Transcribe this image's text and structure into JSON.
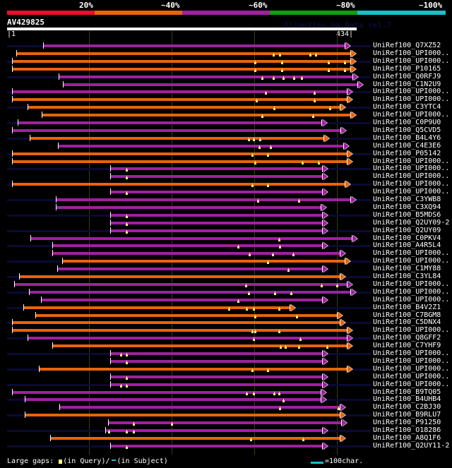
{
  "header": {
    "identity_bands": [
      {
        "label": "20%",
        "color": "#e8102a"
      },
      {
        "label": "~40%",
        "color": "#e8640a"
      },
      {
        "label": "~60%",
        "color": "#a020a0"
      },
      {
        "label": "~80%",
        "color": "#10a010"
      },
      {
        "label": "~100%",
        "color": "#18c0c8"
      }
    ],
    "query_name": "AV429825",
    "watermark": "AlignView.pm Beta rel.7",
    "range_start": "|1",
    "range_end": "434|",
    "query_length": 434
  },
  "colors": {
    "tail": "#0a0a33",
    "gap_marker": "#ffff80",
    "orange": "#e8640a",
    "purple": "#a020a0"
  },
  "rows": [
    {
      "label": "UniRef100_Q7XZ52",
      "tail_start": 1,
      "start": 46,
      "end": 420,
      "color": "purple",
      "gaps": []
    },
    {
      "label": "UniRef100_UPI000..",
      "tail_start": null,
      "start": 12,
      "end": 427,
      "color": "orange",
      "gaps": [
        330,
        338,
        375,
        382
      ]
    },
    {
      "label": "UniRef100_UPI000..",
      "tail_start": 1,
      "start": 7,
      "end": 427,
      "color": "orange",
      "gaps": [
        307,
        340,
        398,
        418
      ]
    },
    {
      "label": "UniRef100_P10165",
      "tail_start": null,
      "start": 7,
      "end": 427,
      "color": "orange",
      "gaps": [
        307,
        340,
        398,
        418
      ]
    },
    {
      "label": "UniRef100_Q0RFJ9",
      "tail_start": 1,
      "start": 65,
      "end": 430,
      "color": "purple",
      "gaps": [
        316,
        330,
        342,
        355,
        365
      ]
    },
    {
      "label": "UniRef100_C1N2U9",
      "tail_start": null,
      "start": 70,
      "end": 436,
      "color": "purple",
      "gaps": []
    },
    {
      "label": "UniRef100_UPI000..",
      "tail_start": 1,
      "start": 7,
      "end": 423,
      "color": "purple",
      "gaps": [
        320,
        381
      ]
    },
    {
      "label": "UniRef100_UPI000..",
      "tail_start": null,
      "start": 7,
      "end": 423,
      "color": "orange",
      "gaps": [
        309,
        381
      ]
    },
    {
      "label": "UniRef100_C3YTC4",
      "tail_start": 1,
      "start": 26,
      "end": 414,
      "color": "orange",
      "gaps": [
        331,
        400
      ]
    },
    {
      "label": "UniRef100_UPI000..",
      "tail_start": null,
      "start": 44,
      "end": 427,
      "color": "orange",
      "gaps": [
        316,
        379
      ]
    },
    {
      "label": "UniRef100_C0P9U0",
      "tail_start": 1,
      "start": 14,
      "end": 391,
      "color": "purple",
      "gaps": []
    },
    {
      "label": "UniRef100_Q5CVD5",
      "tail_start": null,
      "start": 7,
      "end": 415,
      "color": "purple",
      "gaps": []
    },
    {
      "label": "UniRef100_B4L4Y6",
      "tail_start": 1,
      "start": 29,
      "end": 394,
      "color": "orange",
      "gaps": [
        299,
        305,
        313
      ]
    },
    {
      "label": "UniRef100_C4E3E6",
      "tail_start": null,
      "start": 64,
      "end": 418,
      "color": "purple",
      "gaps": [
        312,
        326
      ]
    },
    {
      "label": "UniRef100_P05142",
      "tail_start": 1,
      "start": 7,
      "end": 423,
      "color": "orange",
      "gaps": [
        304,
        323
      ]
    },
    {
      "label": "UniRef100_UPI000..",
      "tail_start": null,
      "start": 7,
      "end": 423,
      "color": "orange",
      "gaps": [
        307,
        366,
        386
      ]
    },
    {
      "label": "UniRef100_UPI000..",
      "tail_start": 1,
      "start": 129,
      "end": 392,
      "color": "purple",
      "gaps": [
        148
      ]
    },
    {
      "label": "UniRef100_UPI000..",
      "tail_start": null,
      "start": 129,
      "end": 392,
      "color": "purple",
      "gaps": [
        148
      ]
    },
    {
      "label": "UniRef100_UPI000..",
      "tail_start": 1,
      "start": 7,
      "end": 420,
      "color": "orange",
      "gaps": [
        304,
        323
      ]
    },
    {
      "label": "UniRef100_UPI000..",
      "tail_start": null,
      "start": 129,
      "end": 392,
      "color": "purple",
      "gaps": [
        148
      ]
    },
    {
      "label": "UniRef100_C3YWB8",
      "tail_start": 1,
      "start": 61,
      "end": 427,
      "color": "purple",
      "gaps": [
        311,
        361
      ]
    },
    {
      "label": "UniRef100_C3XQ94",
      "tail_start": null,
      "start": 61,
      "end": 390,
      "color": "purple",
      "gaps": []
    },
    {
      "label": "UniRef100_B5MDS6",
      "tail_start": 1,
      "start": 129,
      "end": 392,
      "color": "purple",
      "gaps": [
        148
      ]
    },
    {
      "label": "UniRef100_Q2UY09-2",
      "tail_start": null,
      "start": 129,
      "end": 392,
      "color": "purple",
      "gaps": [
        148
      ]
    },
    {
      "label": "UniRef100_Q2UY09",
      "tail_start": 1,
      "start": 129,
      "end": 392,
      "color": "purple",
      "gaps": [
        148
      ]
    },
    {
      "label": "UniRef100_C0PKV4",
      "tail_start": null,
      "start": 30,
      "end": 429,
      "color": "purple",
      "gaps": [
        337
      ]
    },
    {
      "label": "UniRef100_A4R5L4",
      "tail_start": 1,
      "start": 57,
      "end": 392,
      "color": "purple",
      "gaps": [
        286,
        338
      ]
    },
    {
      "label": "UniRef100_UPI000..",
      "tail_start": null,
      "start": 57,
      "end": 414,
      "color": "purple",
      "gaps": [
        300,
        329,
        354
      ]
    },
    {
      "label": "UniRef100_UPI000..",
      "tail_start": 1,
      "start": 69,
      "end": 420,
      "color": "orange",
      "gaps": [
        323
      ]
    },
    {
      "label": "UniRef100_C1MY88",
      "tail_start": null,
      "start": 63,
      "end": 392,
      "color": "purple",
      "gaps": [
        348
      ]
    },
    {
      "label": "UniRef100_C3YL84",
      "tail_start": 1,
      "start": 16,
      "end": 414,
      "color": "orange",
      "gaps": []
    },
    {
      "label": "UniRef100_UPI000..",
      "tail_start": null,
      "start": 10,
      "end": 423,
      "color": "purple",
      "gaps": [
        296,
        389,
        409
      ]
    },
    {
      "label": "UniRef100_UPI000..",
      "tail_start": 1,
      "start": 28,
      "end": 427,
      "color": "purple",
      "gaps": [
        299,
        332,
        352
      ]
    },
    {
      "label": "UniRef100_UPI000..",
      "tail_start": null,
      "start": 43,
      "end": 392,
      "color": "purple",
      "gaps": [
        286
      ]
    },
    {
      "label": "UniRef100_B4V2Z1",
      "tail_start": 1,
      "start": 21,
      "end": 352,
      "color": "orange",
      "gaps": [
        275,
        297,
        305,
        337
      ]
    },
    {
      "label": "UniRef100_C7BGM8",
      "tail_start": null,
      "start": 36,
      "end": 410,
      "color": "orange",
      "gaps": [
        307,
        359
      ]
    },
    {
      "label": "UniRef100_C5DNX4",
      "tail_start": 1,
      "start": 7,
      "end": 414,
      "color": "orange",
      "gaps": []
    },
    {
      "label": "UniRef100_UPI000..",
      "tail_start": null,
      "start": 7,
      "end": 423,
      "color": "orange",
      "gaps": [
        304,
        307,
        337
      ]
    },
    {
      "label": "UniRef100_Q8GFF2",
      "tail_start": 1,
      "start": 26,
      "end": 423,
      "color": "purple",
      "gaps": [
        305,
        363
      ]
    },
    {
      "label": "UniRef100_C7YHF9",
      "tail_start": null,
      "start": 57,
      "end": 423,
      "color": "orange",
      "gaps": [
        339,
        345,
        361,
        396
      ]
    },
    {
      "label": "UniRef100_UPI000..",
      "tail_start": 1,
      "start": 129,
      "end": 392,
      "color": "purple",
      "gaps": [
        141,
        148
      ]
    },
    {
      "label": "UniRef100_UPI000..",
      "tail_start": null,
      "start": 129,
      "end": 392,
      "color": "purple",
      "gaps": [
        148
      ]
    },
    {
      "label": "UniRef100_UPI000..",
      "tail_start": 1,
      "start": 40,
      "end": 423,
      "color": "orange",
      "gaps": [
        304,
        323
      ]
    },
    {
      "label": "UniRef100_UPI000..",
      "tail_start": null,
      "start": 129,
      "end": 392,
      "color": "purple",
      "gaps": [
        148
      ]
    },
    {
      "label": "UniRef100_UPI000..",
      "tail_start": 1,
      "start": 129,
      "end": 392,
      "color": "purple",
      "gaps": [
        141,
        148
      ]
    },
    {
      "label": "UniRef100_B9TQ05",
      "tail_start": null,
      "start": 7,
      "end": 390,
      "color": "purple",
      "gaps": [
        297,
        305,
        331,
        337
      ]
    },
    {
      "label": "UniRef100_B4UHB4",
      "tail_start": 1,
      "start": 23,
      "end": 390,
      "color": "purple",
      "gaps": [
        342
      ]
    },
    {
      "label": "UniRef100_C2BJ30",
      "tail_start": null,
      "start": 66,
      "end": 414,
      "color": "purple",
      "gaps": [
        338,
        410
      ]
    },
    {
      "label": "UniRef100_B9RLU7",
      "tail_start": 1,
      "start": 23,
      "end": 414,
      "color": "orange",
      "gaps": []
    },
    {
      "label": "UniRef100_P91250",
      "tail_start": null,
      "start": 126,
      "end": 416,
      "color": "purple",
      "gaps": [
        157,
        204
      ]
    },
    {
      "label": "UniRef100_O18286",
      "tail_start": 1,
      "start": 123,
      "end": 392,
      "color": "purple",
      "gaps": [
        126,
        148,
        157
      ]
    },
    {
      "label": "UniRef100_A8Q1F6",
      "tail_start": null,
      "start": 54,
      "end": 414,
      "color": "orange",
      "gaps": [
        302,
        367
      ]
    },
    {
      "label": "UniRef100_Q2UY11-2",
      "tail_start": 1,
      "start": 129,
      "end": 392,
      "color": "purple",
      "gaps": [
        148
      ]
    }
  ],
  "footer": {
    "gaps_label": "Large gaps:",
    "query_label": "(in Query)/",
    "subject_label": "(in Subject)",
    "scale_label": "=100char."
  }
}
